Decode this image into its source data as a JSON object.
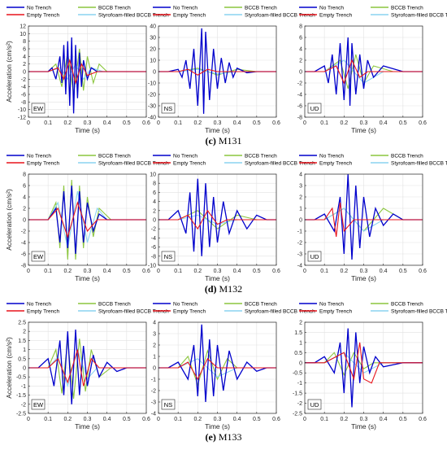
{
  "legend": {
    "entries": [
      {
        "label": "No Trench",
        "color": "#0000cc"
      },
      {
        "label": "BCCB Trench",
        "color": "#8cc63f"
      },
      {
        "label": "Empty Trench",
        "color": "#e8141c"
      },
      {
        "label": "Styrofoam-filled BCCB Trench",
        "color": "#8ad4f0"
      }
    ]
  },
  "rows": [
    {
      "letter": "(c)",
      "name": "M131"
    },
    {
      "letter": "(d)",
      "name": "M132"
    },
    {
      "letter": "(e)",
      "name": "M133"
    }
  ],
  "chart_data": [
    {
      "type": "line",
      "panel": "M131",
      "label": "EW",
      "ylim": [
        -12,
        12
      ],
      "yticks": [
        -12,
        -10,
        -8,
        -6,
        -4,
        -2,
        0,
        2,
        4,
        6,
        8,
        10,
        12
      ],
      "xlabel": "Time (s)",
      "ylabel": "Acceleration (cm/s²)",
      "xlim": [
        0,
        0.6
      ],
      "xticks": [
        0,
        0.1,
        0.2,
        0.3,
        0.4,
        0.5,
        0.6
      ],
      "series": [
        {
          "name": "No Trench",
          "x": [
            0.1,
            0.12,
            0.14,
            0.16,
            0.17,
            0.18,
            0.19,
            0.2,
            0.21,
            0.22,
            0.23,
            0.24,
            0.25,
            0.26,
            0.27,
            0.28,
            0.3,
            0.32,
            0.35
          ],
          "y": [
            0,
            1,
            -2,
            4,
            -3,
            7,
            -6,
            8,
            -9,
            9,
            -11,
            7,
            -7,
            5,
            -4,
            3,
            -2,
            1,
            0
          ]
        },
        {
          "name": "BCCB Trench",
          "x": [
            0.1,
            0.14,
            0.17,
            0.2,
            0.23,
            0.26,
            0.28,
            0.3,
            0.33,
            0.36,
            0.4
          ],
          "y": [
            0,
            2,
            -4,
            5,
            -6,
            6,
            -5,
            4,
            -3,
            2,
            0
          ]
        },
        {
          "name": "Empty Trench",
          "x": [
            0.1,
            0.15,
            0.18,
            0.21,
            0.24,
            0.27,
            0.3,
            0.35
          ],
          "y": [
            0,
            1,
            -2,
            3,
            -3,
            2,
            -1,
            0
          ]
        },
        {
          "name": "Styrofoam-filled BCCB Trench",
          "x": [
            0.1,
            0.16,
            0.2,
            0.24,
            0.28,
            0.32,
            0.38
          ],
          "y": [
            0,
            1,
            -2,
            2,
            -2,
            1,
            0
          ]
        }
      ]
    },
    {
      "type": "line",
      "panel": "M131",
      "label": "NS",
      "ylim": [
        -40,
        40
      ],
      "yticks": [
        -40,
        -30,
        -20,
        -10,
        0,
        10,
        20,
        30,
        40
      ],
      "xlabel": "Time (s)",
      "ylabel": "",
      "xlim": [
        0,
        0.6
      ],
      "xticks": [
        0,
        0.1,
        0.2,
        0.3,
        0.4,
        0.5,
        0.6
      ],
      "series": [
        {
          "name": "No Trench",
          "x": [
            0.05,
            0.1,
            0.12,
            0.14,
            0.16,
            0.18,
            0.2,
            0.22,
            0.23,
            0.24,
            0.26,
            0.28,
            0.3,
            0.32,
            0.34,
            0.36,
            0.38,
            0.4,
            0.45,
            0.5
          ],
          "y": [
            0,
            2,
            -5,
            10,
            -15,
            20,
            -30,
            38,
            -37,
            35,
            -25,
            20,
            -15,
            12,
            -10,
            8,
            -5,
            3,
            -1,
            0
          ]
        },
        {
          "name": "BCCB Trench",
          "x": [
            0.1,
            0.2,
            0.3,
            0.4,
            0.5
          ],
          "y": [
            0,
            3,
            -3,
            2,
            0
          ]
        },
        {
          "name": "Empty Trench",
          "x": [
            0.1,
            0.15,
            0.2,
            0.25,
            0.3
          ],
          "y": [
            0,
            2,
            -3,
            2,
            0
          ]
        },
        {
          "name": "Styrofoam-filled BCCB Trench",
          "x": [
            0.1,
            0.2,
            0.3,
            0.4
          ],
          "y": [
            0,
            2,
            -2,
            0
          ]
        }
      ]
    },
    {
      "type": "line",
      "panel": "M131",
      "label": "UD",
      "ylim": [
        -8,
        8
      ],
      "yticks": [
        -8,
        -6,
        -4,
        -2,
        0,
        2,
        4,
        6,
        8
      ],
      "xlabel": "Time (s)",
      "ylabel": "",
      "xlim": [
        0,
        0.6
      ],
      "xticks": [
        0,
        0.1,
        0.2,
        0.3,
        0.4,
        0.5,
        0.6
      ],
      "series": [
        {
          "name": "No Trench",
          "x": [
            0.05,
            0.1,
            0.12,
            0.14,
            0.16,
            0.18,
            0.2,
            0.22,
            0.23,
            0.24,
            0.26,
            0.28,
            0.3,
            0.32,
            0.35,
            0.4,
            0.5
          ],
          "y": [
            0,
            1,
            -2,
            3,
            -4,
            5,
            -5,
            6,
            -6,
            5,
            -4,
            3,
            -3,
            2,
            -1,
            1,
            0
          ]
        },
        {
          "name": "BCCB Trench",
          "x": [
            0.1,
            0.18,
            0.22,
            0.26,
            0.3,
            0.35,
            0.45
          ],
          "y": [
            0,
            2,
            -3,
            3,
            -2,
            1,
            0
          ]
        },
        {
          "name": "Empty Trench",
          "x": [
            0.1,
            0.16,
            0.2,
            0.24,
            0.28,
            0.32
          ],
          "y": [
            0,
            1,
            -2,
            2,
            -1,
            0
          ]
        },
        {
          "name": "Styrofoam-filled BCCB Trench",
          "x": [
            0.1,
            0.2,
            0.3,
            0.4
          ],
          "y": [
            0,
            2,
            -2,
            0
          ]
        }
      ]
    },
    {
      "type": "line",
      "panel": "M132",
      "label": "EW",
      "ylim": [
        -8,
        8
      ],
      "yticks": [
        -8,
        -6,
        -4,
        -2,
        0,
        2,
        4,
        6,
        8
      ],
      "xlabel": "Time (s)",
      "ylabel": "Acceleration (cm/s²)",
      "xlim": [
        0,
        0.6
      ],
      "xticks": [
        0,
        0.1,
        0.2,
        0.3,
        0.4,
        0.5,
        0.6
      ],
      "series": [
        {
          "name": "No Trench",
          "x": [
            0.1,
            0.14,
            0.16,
            0.18,
            0.2,
            0.22,
            0.24,
            0.26,
            0.28,
            0.3,
            0.33,
            0.36,
            0.4
          ],
          "y": [
            0,
            2,
            -4,
            5,
            -5,
            6,
            -6,
            5,
            -4,
            3,
            -2,
            1,
            0
          ]
        },
        {
          "name": "BCCB Trench",
          "x": [
            0.1,
            0.14,
            0.16,
            0.18,
            0.2,
            0.22,
            0.24,
            0.26,
            0.28,
            0.3,
            0.33,
            0.36,
            0.42
          ],
          "y": [
            0,
            3,
            -5,
            6,
            -7,
            7,
            -7,
            6,
            -5,
            4,
            -3,
            2,
            0
          ]
        },
        {
          "name": "Empty Trench",
          "x": [
            0.1,
            0.15,
            0.2,
            0.25,
            0.3,
            0.35
          ],
          "y": [
            0,
            2,
            -3,
            3,
            -2,
            0
          ]
        },
        {
          "name": "Styrofoam-filled BCCB Trench",
          "x": [
            0.1,
            0.15,
            0.2,
            0.25,
            0.3,
            0.35,
            0.4
          ],
          "y": [
            0,
            3,
            -5,
            5,
            -4,
            2,
            0
          ]
        }
      ]
    },
    {
      "type": "line",
      "panel": "M132",
      "label": "NS",
      "ylim": [
        -10,
        10
      ],
      "yticks": [
        -10,
        -8,
        -6,
        -4,
        -2,
        0,
        2,
        4,
        6,
        8,
        10
      ],
      "xlabel": "Time (s)",
      "ylabel": "",
      "xlim": [
        0,
        0.6
      ],
      "xticks": [
        0,
        0.1,
        0.2,
        0.3,
        0.4,
        0.5,
        0.6
      ],
      "series": [
        {
          "name": "No Trench",
          "x": [
            0.05,
            0.1,
            0.14,
            0.16,
            0.18,
            0.2,
            0.22,
            0.24,
            0.26,
            0.28,
            0.3,
            0.33,
            0.36,
            0.4,
            0.45,
            0.5,
            0.55
          ],
          "y": [
            0,
            2,
            -3,
            6,
            -7,
            9,
            -8,
            8,
            -6,
            5,
            -5,
            4,
            -3,
            2,
            -2,
            1,
            0
          ]
        },
        {
          "name": "BCCB Trench",
          "x": [
            0.1,
            0.2,
            0.3,
            0.4,
            0.5
          ],
          "y": [
            0,
            2,
            -2,
            1,
            0
          ]
        },
        {
          "name": "Empty Trench",
          "x": [
            0.1,
            0.15,
            0.2,
            0.25,
            0.3,
            0.35
          ],
          "y": [
            0,
            1,
            -2,
            2,
            -1,
            0
          ]
        },
        {
          "name": "Styrofoam-filled BCCB Trench",
          "x": [
            0.1,
            0.2,
            0.3,
            0.4
          ],
          "y": [
            0,
            1,
            -1,
            0
          ]
        }
      ]
    },
    {
      "type": "line",
      "panel": "M132",
      "label": "UD",
      "ylim": [
        -4,
        4
      ],
      "yticks": [
        -4,
        -3,
        -2,
        -1,
        0,
        1,
        2,
        3,
        4
      ],
      "xlabel": "Time (s)",
      "ylabel": "",
      "xlim": [
        0,
        0.6
      ],
      "xticks": [
        0,
        0.1,
        0.2,
        0.3,
        0.4,
        0.5,
        0.6
      ],
      "series": [
        {
          "name": "No Trench",
          "x": [
            0.05,
            0.1,
            0.15,
            0.18,
            0.2,
            0.22,
            0.24,
            0.26,
            0.28,
            0.3,
            0.33,
            0.36,
            0.4,
            0.45,
            0.5
          ],
          "y": [
            0,
            0.5,
            -1,
            2,
            -3,
            4,
            -3.5,
            3,
            -2.5,
            2,
            -1.5,
            1,
            -0.5,
            0.5,
            0
          ]
        },
        {
          "name": "BCCB Trench",
          "x": [
            0.1,
            0.2,
            0.3,
            0.4,
            0.5
          ],
          "y": [
            0,
            1,
            -1,
            1,
            0
          ]
        },
        {
          "name": "Empty Trench",
          "x": [
            0.1,
            0.14,
            0.16,
            0.18,
            0.2,
            0.25
          ],
          "y": [
            0,
            1,
            -1.5,
            1.5,
            -1,
            0
          ]
        },
        {
          "name": "Styrofoam-filled BCCB Trench",
          "x": [
            0.1,
            0.2,
            0.3,
            0.4
          ],
          "y": [
            0,
            1,
            -1,
            0
          ]
        }
      ]
    },
    {
      "type": "line",
      "panel": "M133",
      "label": "EW",
      "ylim": [
        -2.5,
        2.5
      ],
      "yticks": [
        -2.5,
        -2,
        -1.5,
        -1,
        -0.5,
        0,
        0.5,
        1,
        1.5,
        2,
        2.5
      ],
      "xlabel": "Time (s)",
      "ylabel": "Acceleration (cm/s²)",
      "xlim": [
        0,
        0.6
      ],
      "xticks": [
        0,
        0.1,
        0.2,
        0.3,
        0.4,
        0.5,
        0.6
      ],
      "series": [
        {
          "name": "No Trench",
          "x": [
            0.05,
            0.1,
            0.13,
            0.16,
            0.18,
            0.2,
            0.22,
            0.24,
            0.26,
            0.28,
            0.3,
            0.33,
            0.36,
            0.4,
            0.45,
            0.5
          ],
          "y": [
            0,
            0.5,
            -1,
            1.5,
            -1.5,
            2,
            -2,
            2.1,
            -1.5,
            1.2,
            -1,
            0.7,
            -0.5,
            0.3,
            -0.2,
            0
          ]
        },
        {
          "name": "BCCB Trench",
          "x": [
            0.1,
            0.14,
            0.17,
            0.2,
            0.23,
            0.26,
            0.29,
            0.32,
            0.36,
            0.42
          ],
          "y": [
            0,
            1,
            -1.4,
            1.5,
            -1.7,
            1.6,
            -1.3,
            1,
            -0.5,
            0
          ]
        },
        {
          "name": "Empty Trench",
          "x": [
            0.1,
            0.15,
            0.2,
            0.25,
            0.28,
            0.32,
            0.36
          ],
          "y": [
            0,
            0.5,
            -0.8,
            1,
            -1,
            0.5,
            0
          ]
        },
        {
          "name": "Styrofoam-filled BCCB Trench",
          "x": [
            0.1,
            0.15,
            0.2,
            0.25,
            0.3,
            0.35
          ],
          "y": [
            0,
            0.6,
            -1,
            1,
            -0.6,
            0
          ]
        }
      ]
    },
    {
      "type": "line",
      "panel": "M133",
      "label": "NS",
      "ylim": [
        -4,
        4
      ],
      "yticks": [
        -4,
        -3,
        -2,
        -1,
        0,
        1,
        2,
        3,
        4
      ],
      "xlabel": "Time (s)",
      "ylabel": "",
      "xlim": [
        0,
        0.6
      ],
      "xticks": [
        0,
        0.1,
        0.2,
        0.3,
        0.4,
        0.5,
        0.6
      ],
      "series": [
        {
          "name": "No Trench",
          "x": [
            0.05,
            0.1,
            0.15,
            0.18,
            0.2,
            0.22,
            0.24,
            0.26,
            0.28,
            0.3,
            0.33,
            0.36,
            0.4,
            0.45,
            0.5,
            0.55
          ],
          "y": [
            0,
            0.5,
            -1,
            2,
            -2.5,
            3.8,
            -3,
            2.5,
            -2.5,
            2,
            -2,
            1.5,
            -1,
            0.5,
            -0.3,
            0
          ]
        },
        {
          "name": "BCCB Trench",
          "x": [
            0.1,
            0.15,
            0.2,
            0.25,
            0.3,
            0.35,
            0.4
          ],
          "y": [
            0,
            1,
            -1.5,
            1.5,
            -1,
            0.8,
            0
          ]
        },
        {
          "name": "Empty Trench",
          "x": [
            0.1,
            0.15,
            0.2,
            0.25,
            0.3
          ],
          "y": [
            0,
            0.5,
            -1,
            0.8,
            0
          ]
        },
        {
          "name": "Styrofoam-filled BCCB Trench",
          "x": [
            0.1,
            0.2,
            0.3,
            0.4
          ],
          "y": [
            0,
            0.8,
            -0.8,
            0
          ]
        }
      ]
    },
    {
      "type": "line",
      "panel": "M133",
      "label": "UD",
      "ylim": [
        -2.5,
        2
      ],
      "yticks": [
        -2.5,
        -2,
        -1.5,
        -1,
        -0.5,
        0,
        0.5,
        1,
        1.5,
        2
      ],
      "xlabel": "Time (s)",
      "ylabel": "",
      "xlim": [
        0,
        0.6
      ],
      "xticks": [
        0,
        0.1,
        0.2,
        0.3,
        0.4,
        0.5,
        0.6
      ],
      "series": [
        {
          "name": "No Trench",
          "x": [
            0.05,
            0.1,
            0.15,
            0.18,
            0.2,
            0.22,
            0.24,
            0.26,
            0.28,
            0.3,
            0.33,
            0.36,
            0.4,
            0.5
          ],
          "y": [
            0,
            0.3,
            -0.5,
            1,
            -1.5,
            1.7,
            -2.2,
            1.5,
            -1,
            0.8,
            -0.5,
            0.3,
            -0.2,
            0
          ]
        },
        {
          "name": "BCCB Trench",
          "x": [
            0.1,
            0.15,
            0.2,
            0.25,
            0.3,
            0.35
          ],
          "y": [
            0,
            0.5,
            -0.6,
            0.5,
            -0.3,
            0
          ]
        },
        {
          "name": "Empty Trench",
          "x": [
            0.1,
            0.2,
            0.25,
            0.28,
            0.3,
            0.34,
            0.38
          ],
          "y": [
            0,
            0.5,
            -0.8,
            1,
            -0.8,
            -1,
            0
          ]
        },
        {
          "name": "Styrofoam-filled BCCB Trench",
          "x": [
            0.1,
            0.2,
            0.3,
            0.4
          ],
          "y": [
            0,
            0.5,
            -0.5,
            0
          ]
        }
      ]
    }
  ]
}
